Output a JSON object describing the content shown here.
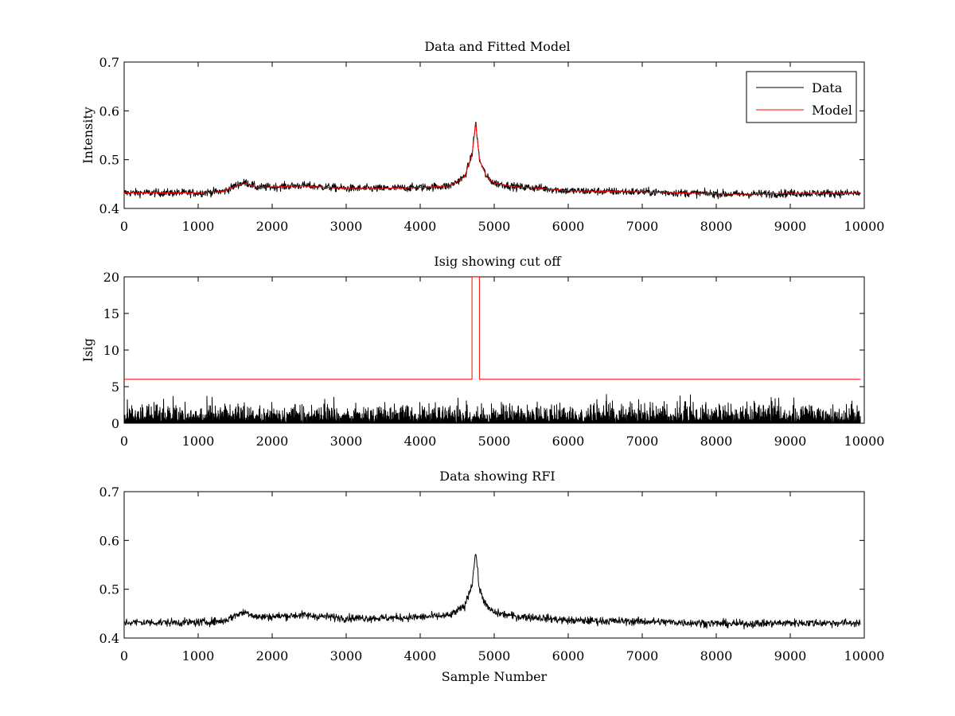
{
  "chart_data": [
    {
      "type": "line",
      "title": "Data and Fitted Model",
      "xlabel": "",
      "ylabel": "Intensity",
      "xlim": [
        0,
        10000
      ],
      "ylim": [
        0.4,
        0.7
      ],
      "xticks": [
        0,
        1000,
        2000,
        3000,
        4000,
        5000,
        6000,
        7000,
        8000,
        9000,
        10000
      ],
      "yticks": [
        0.4,
        0.5,
        0.6,
        0.7
      ],
      "xtick_labels": [
        "0",
        "1000",
        "2000",
        "3000",
        "4000",
        "5000",
        "6000",
        "7000",
        "8000",
        "9000",
        "10000"
      ],
      "ytick_labels": [
        "0.4",
        "0.5",
        "0.6",
        "0.7"
      ],
      "legend": "top-right",
      "grid": false,
      "series": [
        {
          "name": "Data",
          "color": "#000000",
          "noise": 0.004,
          "x": [
            0,
            1000,
            1350,
            1550,
            1650,
            1800,
            2000,
            2400,
            3000,
            3500,
            4000,
            4400,
            4600,
            4700,
            4750,
            4800,
            4900,
            5000,
            5300,
            5600,
            6000,
            7000,
            8000,
            8300,
            9000,
            9950
          ],
          "y": [
            0.432,
            0.432,
            0.435,
            0.45,
            0.453,
            0.443,
            0.444,
            0.447,
            0.441,
            0.441,
            0.443,
            0.446,
            0.465,
            0.51,
            0.578,
            0.5,
            0.464,
            0.452,
            0.444,
            0.442,
            0.436,
            0.434,
            0.43,
            0.429,
            0.431,
            0.431
          ]
        },
        {
          "name": "Model",
          "color": "#ff0000",
          "noise": 0,
          "x": [
            0,
            1000,
            1350,
            1550,
            1650,
            1800,
            2000,
            2400,
            3000,
            3500,
            4000,
            4400,
            4600,
            4700,
            4750,
            4800,
            4900,
            5000,
            5300,
            5600,
            6000,
            7000,
            8000,
            8300,
            9000,
            9950
          ],
          "y": [
            0.432,
            0.432,
            0.435,
            0.449,
            0.451,
            0.443,
            0.444,
            0.446,
            0.441,
            0.441,
            0.443,
            0.446,
            0.465,
            0.51,
            0.575,
            0.5,
            0.464,
            0.452,
            0.444,
            0.442,
            0.436,
            0.434,
            0.43,
            0.429,
            0.431,
            0.431
          ]
        }
      ]
    },
    {
      "type": "line",
      "title": "Isig showing cut off",
      "xlabel": "",
      "ylabel": "Isig",
      "xlim": [
        0,
        10000
      ],
      "ylim": [
        0,
        20
      ],
      "xticks": [
        0,
        1000,
        2000,
        3000,
        4000,
        5000,
        6000,
        7000,
        8000,
        9000,
        10000
      ],
      "yticks": [
        0,
        5,
        10,
        15,
        20
      ],
      "xtick_labels": [
        "0",
        "1000",
        "2000",
        "3000",
        "4000",
        "5000",
        "6000",
        "7000",
        "8000",
        "9000",
        "10000"
      ],
      "ytick_labels": [
        "0",
        "5",
        "10",
        "15",
        "20"
      ],
      "grid": false,
      "series": [
        {
          "color": "#000000",
          "kind": "abs-noise",
          "x_range": [
            0,
            9950
          ],
          "scale": 1.3
        },
        {
          "color": "#ff0000",
          "x": [
            0,
            4700,
            4700,
            4800,
            4800,
            9950
          ],
          "y": [
            6,
            6,
            20,
            20,
            6,
            6
          ]
        }
      ]
    },
    {
      "type": "line",
      "title": "Data showing RFI",
      "xlabel": "Sample Number",
      "ylabel": "",
      "xlim": [
        0,
        10000
      ],
      "ylim": [
        0.4,
        0.7
      ],
      "xticks": [
        0,
        1000,
        2000,
        3000,
        4000,
        5000,
        6000,
        7000,
        8000,
        9000,
        10000
      ],
      "yticks": [
        0.4,
        0.5,
        0.6,
        0.7
      ],
      "xtick_labels": [
        "0",
        "1000",
        "2000",
        "3000",
        "4000",
        "5000",
        "6000",
        "7000",
        "8000",
        "9000",
        "10000"
      ],
      "ytick_labels": [
        "0.4",
        "0.5",
        "0.6",
        "0.7"
      ],
      "grid": false,
      "series": [
        {
          "color": "#000000",
          "noise": 0.004,
          "x": [
            0,
            1000,
            1350,
            1550,
            1650,
            1800,
            2000,
            2400,
            3000,
            3500,
            4000,
            4400,
            4600,
            4700,
            4750,
            4800,
            4900,
            5000,
            5300,
            5600,
            6000,
            7000,
            8000,
            8300,
            9000,
            9950
          ],
          "y": [
            0.432,
            0.432,
            0.435,
            0.45,
            0.453,
            0.443,
            0.444,
            0.447,
            0.441,
            0.441,
            0.443,
            0.446,
            0.465,
            0.51,
            0.578,
            0.5,
            0.464,
            0.452,
            0.444,
            0.442,
            0.436,
            0.434,
            0.43,
            0.429,
            0.431,
            0.431
          ]
        }
      ]
    }
  ]
}
